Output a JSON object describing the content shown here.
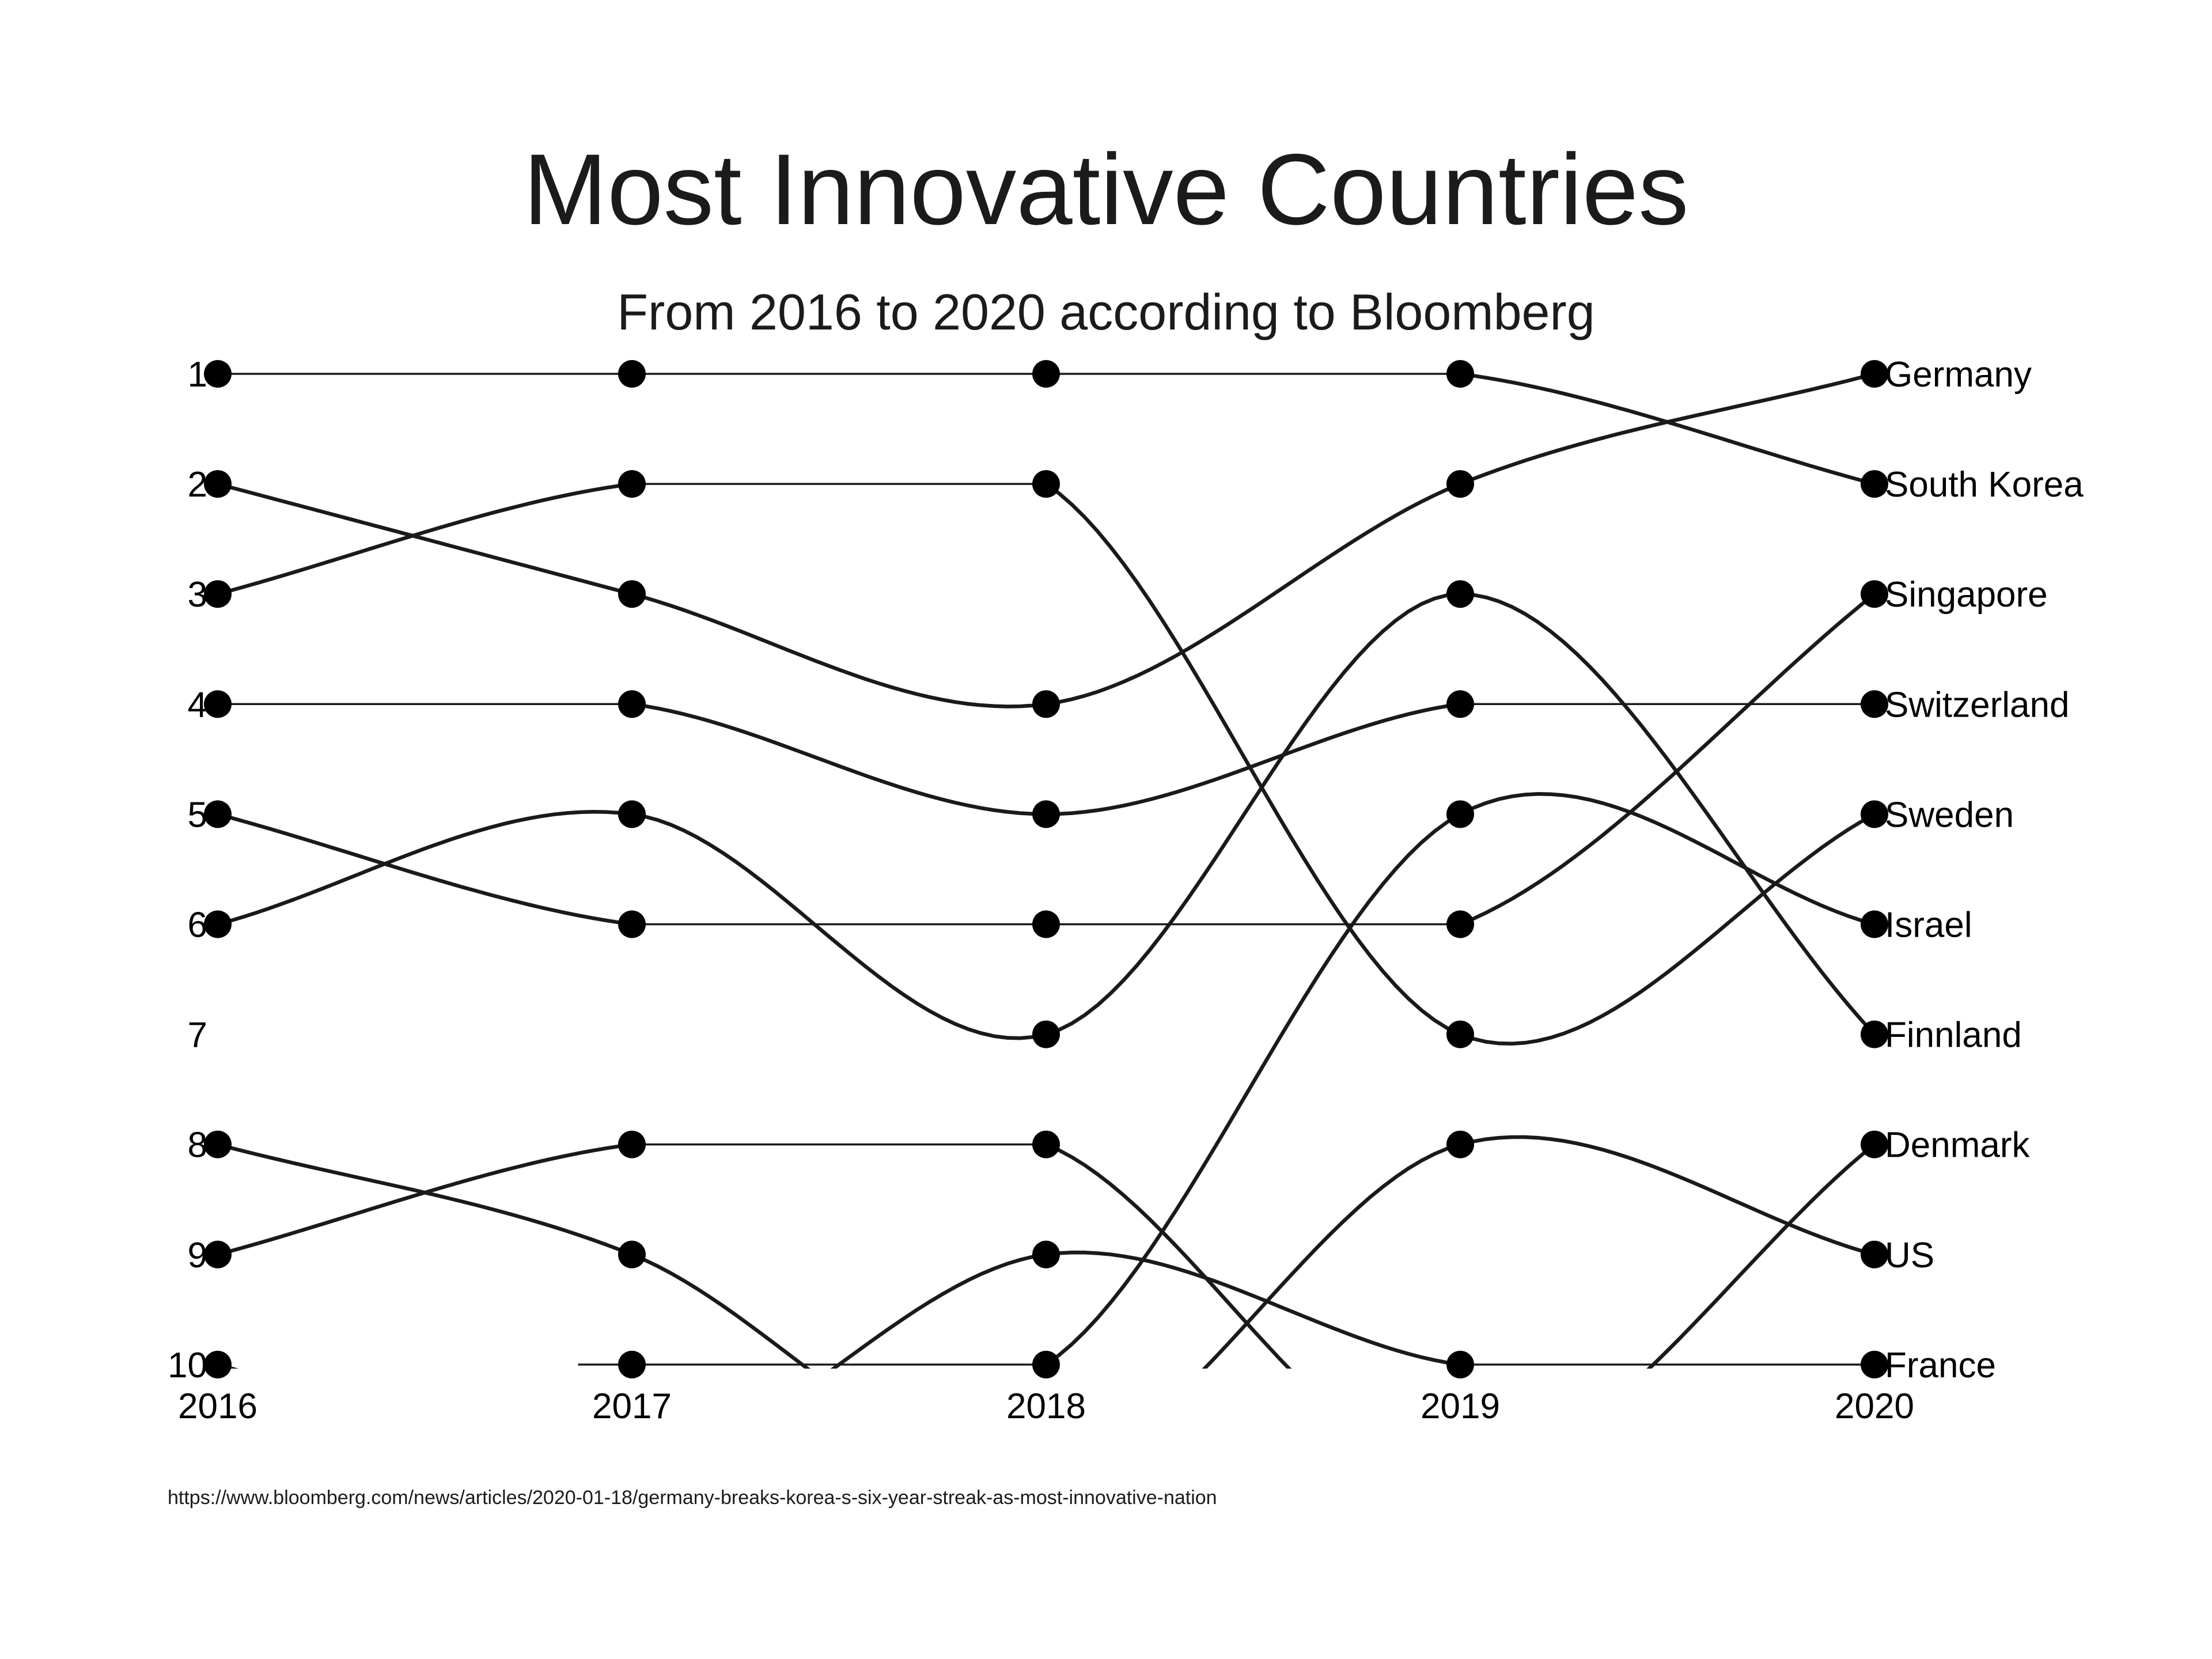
{
  "header": {
    "title": "Most Innovative Countries",
    "subtitle": "From 2016 to 2020 according to Bloomberg"
  },
  "source": {
    "text": "https://www.bloomberg.com/news/articles/2020-01-18/germany-breaks-korea-s-six-year-streak-as-most-innovative-nation"
  },
  "chart_data": {
    "type": "line",
    "subtype": "bump-rank-chart",
    "title": "Most Innovative Countries",
    "subtitle": "From 2016 to 2020 according to Bloomberg",
    "x": [
      2016,
      2017,
      2018,
      2019,
      2020
    ],
    "xlabel": "",
    "ylabel": "",
    "rank_ticks": [
      1,
      2,
      3,
      4,
      5,
      6,
      7,
      8,
      9,
      10
    ],
    "ylim": [
      1,
      10
    ],
    "grid": false,
    "legend_position": "right-edge-labels",
    "out_of_top10_rank": 11,
    "note_missing_dots": "rank 7 in 2016, rank 7 in 2017, rank 3 in 2018 and rank 9 in 2019 have no dot (untracked country); 11 = dropped out of top 10, line clipped below rank 10; null = not plotted",
    "series": [
      {
        "name": "South Korea",
        "ranks": [
          1,
          1,
          1,
          1,
          2
        ]
      },
      {
        "name": "Germany",
        "ranks": [
          2,
          3,
          4,
          2,
          1
        ]
      },
      {
        "name": "Sweden",
        "ranks": [
          3,
          2,
          2,
          7,
          5
        ]
      },
      {
        "name": "Switzerland",
        "ranks": [
          4,
          4,
          5,
          4,
          4
        ]
      },
      {
        "name": "Singapore",
        "ranks": [
          5,
          6,
          6,
          6,
          3
        ]
      },
      {
        "name": "Finnland",
        "ranks": [
          6,
          5,
          7,
          3,
          7
        ]
      },
      {
        "name": "US",
        "ranks": [
          8,
          9,
          11,
          8,
          9
        ]
      },
      {
        "name": "Denmark",
        "ranks": [
          9,
          8,
          8,
          11,
          8
        ]
      },
      {
        "name": "France",
        "ranks": [
          10,
          11,
          9,
          10,
          10
        ]
      },
      {
        "name": "Israel",
        "ranks": [
          null,
          10,
          10,
          5,
          6
        ]
      }
    ],
    "line_color": "#1a1a1a",
    "dot_color": "#000000",
    "label_color": "#000000"
  }
}
